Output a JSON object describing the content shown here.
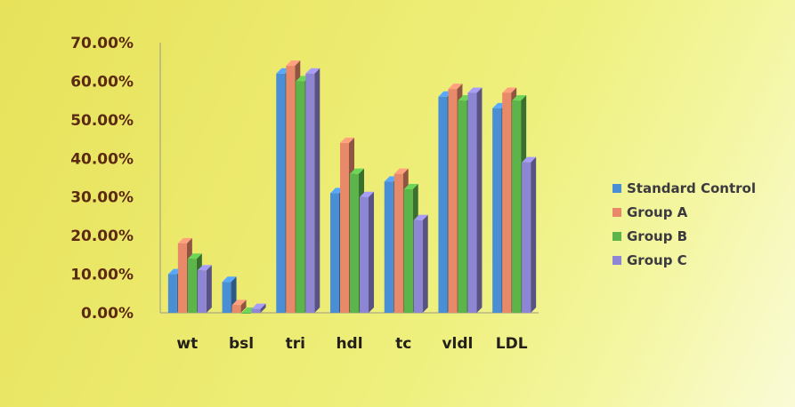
{
  "chart_data": {
    "type": "bar",
    "title": "",
    "xlabel": "",
    "ylabel": "",
    "categories": [
      "wt",
      "bsl",
      "tri",
      "hdl",
      "tc",
      "vldl",
      "LDL"
    ],
    "y_ticks": [
      "0.00%",
      "10.00%",
      "20.00%",
      "30.00%",
      "40.00%",
      "50.00%",
      "60.00%",
      "70.00%"
    ],
    "ylim": [
      0,
      70
    ],
    "grid": false,
    "legend_position": "right",
    "series": [
      {
        "name": "Standard Control",
        "color": "#4a8fd6",
        "values": [
          10,
          8,
          62,
          31,
          34,
          56,
          53
        ]
      },
      {
        "name": "Group A",
        "color": "#e8896a",
        "values": [
          18,
          2,
          64,
          44,
          36,
          58,
          57
        ]
      },
      {
        "name": "Group B",
        "color": "#5cb54a",
        "values": [
          14,
          0,
          60,
          36,
          32,
          55,
          55
        ]
      },
      {
        "name": "Group C",
        "color": "#8e86d4",
        "values": [
          11,
          1,
          62,
          30,
          24,
          57,
          39
        ]
      }
    ]
  }
}
